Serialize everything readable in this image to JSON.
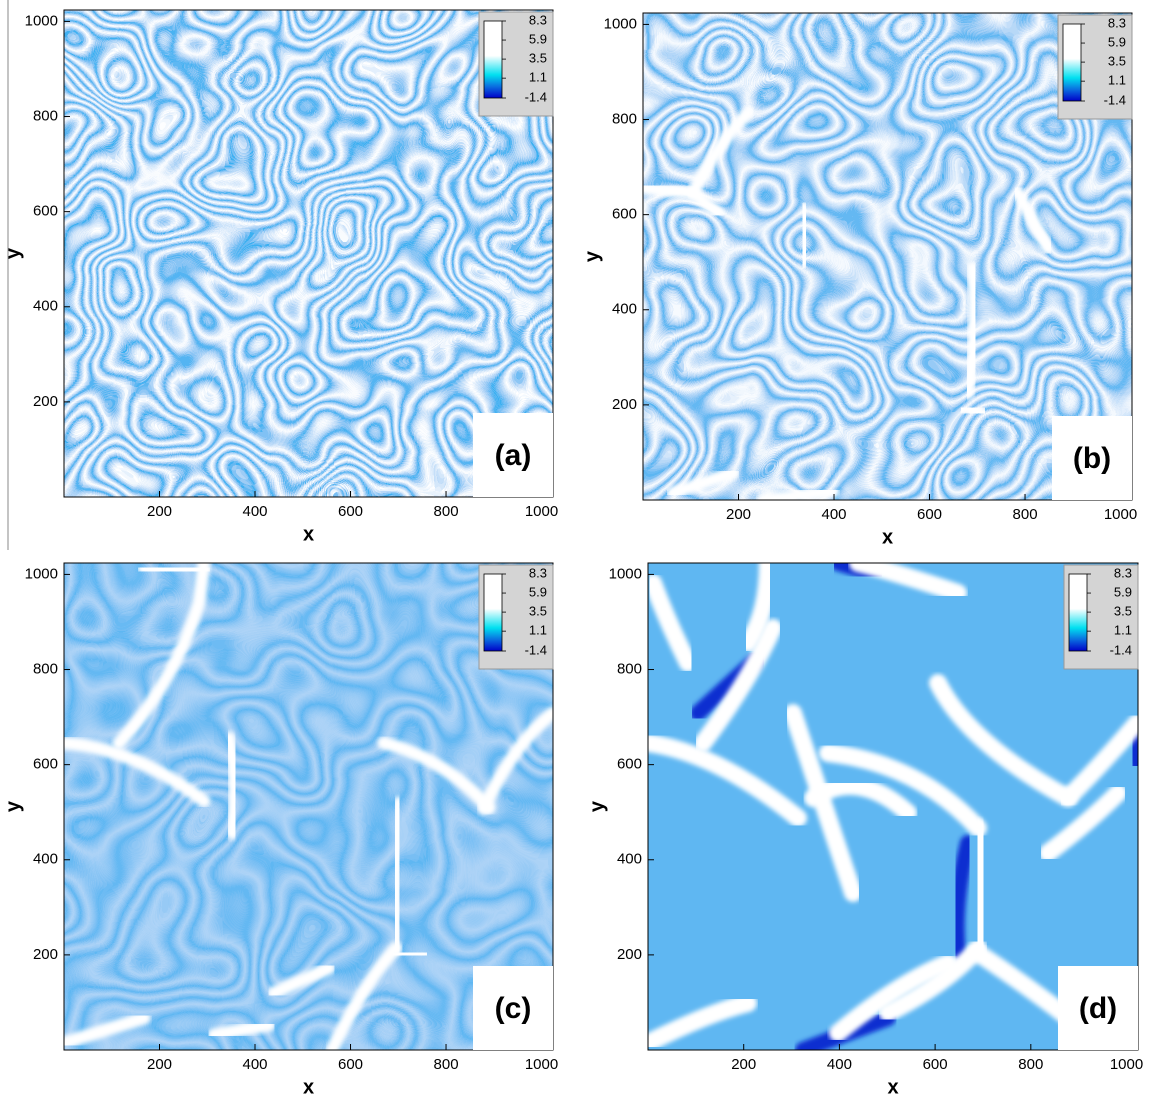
{
  "chart_data": [
    {
      "type": "heatmap",
      "panel_label": "(a)",
      "xlabel": "x",
      "ylabel": "y",
      "xlim": [
        0,
        1024
      ],
      "ylim": [
        0,
        1024
      ],
      "xticks": [
        200,
        400,
        600,
        800,
        1000
      ],
      "yticks": [
        200,
        400,
        600,
        800,
        1000
      ],
      "colorbar_ticks": [
        8.3,
        5.9,
        3.5,
        1.1,
        -1.4
      ]
    },
    {
      "type": "heatmap",
      "panel_label": "(b)",
      "xlabel": "x",
      "ylabel": "y",
      "xlim": [
        0,
        1024
      ],
      "ylim": [
        0,
        1024
      ],
      "xticks": [
        200,
        400,
        600,
        800,
        1000
      ],
      "yticks": [
        200,
        400,
        600,
        800,
        1000
      ],
      "colorbar_ticks": [
        8.3,
        5.9,
        3.5,
        1.1,
        -1.4
      ]
    },
    {
      "type": "heatmap",
      "panel_label": "(c)",
      "xlabel": "x",
      "ylabel": "y",
      "xlim": [
        0,
        1024
      ],
      "ylim": [
        0,
        1024
      ],
      "xticks": [
        200,
        400,
        600,
        800,
        1000
      ],
      "yticks": [
        200,
        400,
        600,
        800,
        1000
      ],
      "colorbar_ticks": [
        8.3,
        5.9,
        3.5,
        1.1,
        -1.4
      ]
    },
    {
      "type": "heatmap",
      "panel_label": "(d)",
      "xlabel": "x",
      "ylabel": "y",
      "xlim": [
        0,
        1024
      ],
      "ylim": [
        0,
        1024
      ],
      "xticks": [
        200,
        400,
        600,
        800,
        1000
      ],
      "yticks": [
        200,
        400,
        600,
        800,
        1000
      ],
      "colorbar_ticks": [
        8.3,
        5.9,
        3.5,
        1.1,
        -1.4
      ]
    }
  ]
}
